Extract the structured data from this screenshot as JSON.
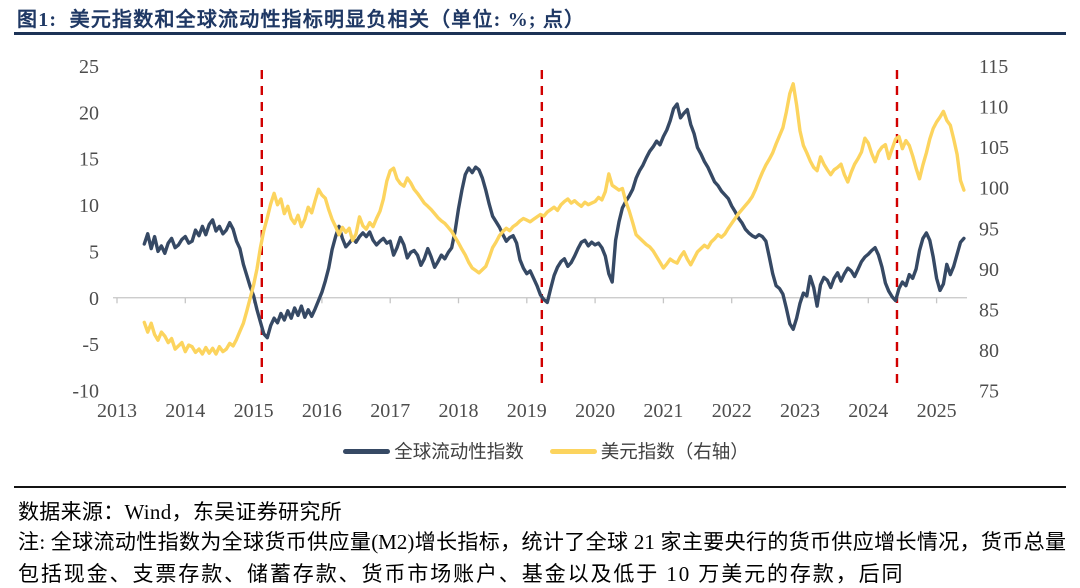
{
  "title": "图1:  美元指数和全球流动性指标明显负相关（单位: %; 点）",
  "chart_data": {
    "type": "line",
    "title": "美元指数和全球流动性指标明显负相关",
    "unit": "%; 点",
    "x_axis": {
      "labels": [
        "2013",
        "2014",
        "2015",
        "2016",
        "2017",
        "2018",
        "2019",
        "2020",
        "2021",
        "2022",
        "2023",
        "2024",
        "2025"
      ],
      "start": 2013,
      "end": 2025
    },
    "left_axis": {
      "min": -10,
      "max": 25,
      "step": 5,
      "ticks": [
        25,
        20,
        15,
        10,
        5,
        0,
        -5,
        -10
      ]
    },
    "right_axis": {
      "min": 75,
      "max": 115,
      "step": 5,
      "ticks": [
        115,
        110,
        105,
        100,
        95,
        90,
        85,
        80,
        75
      ]
    },
    "event_lines": {
      "color": "#d10000",
      "x": [
        2015.12,
        2019.22,
        2024.42
      ]
    },
    "series": [
      {
        "name": "全球流动性指数",
        "axis": "left",
        "color": "#364964",
        "points": [
          2013.4,
          5.8,
          2013.45,
          6.9,
          2013.5,
          5.3,
          2013.55,
          6.6,
          2013.6,
          5.0,
          2013.65,
          5.6,
          2013.7,
          4.8,
          2013.75,
          5.9,
          2013.8,
          6.4,
          2013.85,
          5.4,
          2013.9,
          5.7,
          2013.95,
          6.3,
          2014.0,
          6.6,
          2014.05,
          5.9,
          2014.1,
          6.1,
          2014.15,
          7.3,
          2014.2,
          6.7,
          2014.25,
          7.7,
          2014.3,
          6.8,
          2014.35,
          7.9,
          2014.4,
          8.4,
          2014.45,
          7.2,
          2014.5,
          7.7,
          2014.55,
          6.9,
          2014.6,
          7.3,
          2014.65,
          8.1,
          2014.7,
          7.4,
          2014.75,
          6.1,
          2014.8,
          5.3,
          2014.85,
          3.6,
          2014.9,
          2.4,
          2014.95,
          1.2,
          2015.0,
          0.2,
          2015.05,
          -1.3,
          2015.1,
          -2.6,
          2015.15,
          -3.9,
          2015.2,
          -4.3,
          2015.25,
          -3.0,
          2015.3,
          -2.2,
          2015.35,
          -2.7,
          2015.4,
          -1.7,
          2015.45,
          -2.4,
          2015.5,
          -1.4,
          2015.55,
          -2.2,
          2015.6,
          -1.1,
          2015.65,
          -1.9,
          2015.7,
          -0.9,
          2015.75,
          -2.1,
          2015.8,
          -1.3,
          2015.85,
          -2.0,
          2015.9,
          -1.2,
          2015.95,
          -0.3,
          2016.0,
          0.6,
          2016.05,
          1.8,
          2016.1,
          3.2,
          2016.15,
          5.2,
          2016.2,
          6.6,
          2016.25,
          7.7,
          2016.3,
          6.4,
          2016.35,
          5.5,
          2016.4,
          5.9,
          2016.45,
          6.4,
          2016.5,
          6.0,
          2016.55,
          6.6,
          2016.6,
          7.0,
          2016.65,
          6.6,
          2016.7,
          7.1,
          2016.75,
          6.2,
          2016.8,
          5.7,
          2016.85,
          6.1,
          2016.9,
          6.4,
          2016.95,
          5.9,
          2017.0,
          6.1,
          2017.05,
          4.6,
          2017.1,
          5.4,
          2017.15,
          6.5,
          2017.2,
          5.7,
          2017.25,
          4.3,
          2017.3,
          4.9,
          2017.35,
          5.1,
          2017.4,
          4.6,
          2017.45,
          3.5,
          2017.5,
          4.2,
          2017.55,
          5.3,
          2017.6,
          4.4,
          2017.65,
          3.3,
          2017.7,
          3.9,
          2017.75,
          4.6,
          2017.8,
          4.2,
          2017.85,
          4.9,
          2017.9,
          5.4,
          2017.95,
          7.2,
          2018.0,
          9.6,
          2018.05,
          11.6,
          2018.1,
          13.3,
          2018.15,
          14.0,
          2018.2,
          13.5,
          2018.25,
          14.1,
          2018.3,
          13.8,
          2018.35,
          12.9,
          2018.4,
          11.6,
          2018.45,
          10.1,
          2018.5,
          8.8,
          2018.55,
          8.2,
          2018.6,
          7.6,
          2018.65,
          6.8,
          2018.7,
          6.1,
          2018.75,
          6.5,
          2018.8,
          6.7,
          2018.85,
          5.9,
          2018.9,
          4.1,
          2018.95,
          3.2,
          2019.0,
          2.6,
          2019.05,
          2.9,
          2019.1,
          2.1,
          2019.15,
          1.3,
          2019.2,
          0.3,
          2019.25,
          -0.2,
          2019.3,
          -0.5,
          2019.35,
          1.0,
          2019.4,
          2.4,
          2019.45,
          3.3,
          2019.5,
          3.9,
          2019.55,
          4.2,
          2019.6,
          3.4,
          2019.65,
          3.8,
          2019.7,
          4.5,
          2019.75,
          5.3,
          2019.8,
          6.0,
          2019.85,
          6.2,
          2019.9,
          5.6,
          2019.95,
          6.0,
          2020.0,
          5.7,
          2020.05,
          5.9,
          2020.1,
          5.4,
          2020.15,
          4.5,
          2020.2,
          2.6,
          2020.25,
          1.7,
          2020.3,
          6.2,
          2020.35,
          8.2,
          2020.4,
          9.7,
          2020.45,
          10.4,
          2020.5,
          11.0,
          2020.55,
          11.7,
          2020.6,
          12.9,
          2020.65,
          13.7,
          2020.7,
          14.3,
          2020.75,
          15.1,
          2020.8,
          15.8,
          2020.85,
          16.3,
          2020.9,
          16.9,
          2020.95,
          16.5,
          2021.0,
          17.4,
          2021.05,
          18.1,
          2021.1,
          19.1,
          2021.15,
          20.4,
          2021.2,
          20.9,
          2021.25,
          19.4,
          2021.3,
          19.9,
          2021.35,
          20.3,
          2021.4,
          18.7,
          2021.45,
          17.7,
          2021.5,
          16.2,
          2021.55,
          15.5,
          2021.6,
          14.7,
          2021.65,
          14.1,
          2021.7,
          13.3,
          2021.75,
          12.5,
          2021.8,
          12.1,
          2021.85,
          11.5,
          2021.9,
          11.1,
          2021.95,
          10.7,
          2022.0,
          9.9,
          2022.05,
          9.3,
          2022.1,
          8.6,
          2022.15,
          8.1,
          2022.2,
          7.4,
          2022.25,
          7.0,
          2022.3,
          6.7,
          2022.35,
          6.5,
          2022.4,
          6.8,
          2022.45,
          6.6,
          2022.5,
          6.1,
          2022.55,
          4.4,
          2022.6,
          2.6,
          2022.65,
          1.3,
          2022.7,
          1.0,
          2022.75,
          0.4,
          2022.8,
          -1.1,
          2022.85,
          -2.8,
          2022.9,
          -3.4,
          2022.95,
          -2.2,
          2023.0,
          -0.6,
          2023.05,
          0.5,
          2023.1,
          0.2,
          2023.15,
          2.3,
          2023.2,
          1.1,
          2023.25,
          -0.9,
          2023.3,
          1.4,
          2023.35,
          2.2,
          2023.4,
          1.9,
          2023.45,
          1.1,
          2023.5,
          2.1,
          2023.55,
          2.7,
          2023.6,
          1.8,
          2023.65,
          2.6,
          2023.7,
          3.2,
          2023.75,
          2.9,
          2023.8,
          2.3,
          2023.85,
          3.1,
          2023.9,
          3.9,
          2023.95,
          4.4,
          2024.0,
          4.7,
          2024.05,
          5.1,
          2024.1,
          5.4,
          2024.15,
          4.6,
          2024.2,
          3.3,
          2024.25,
          1.6,
          2024.3,
          0.7,
          2024.35,
          0.1,
          2024.4,
          -0.3,
          2024.45,
          1.0,
          2024.5,
          1.7,
          2024.55,
          1.3,
          2024.6,
          2.5,
          2024.65,
          2.1,
          2024.7,
          3.1,
          2024.75,
          5.1,
          2024.8,
          6.4,
          2024.85,
          7.0,
          2024.9,
          6.2,
          2024.95,
          4.4,
          2025.0,
          2.1,
          2025.05,
          0.8,
          2025.1,
          1.5,
          2025.15,
          3.6,
          2025.2,
          2.5,
          2025.25,
          3.4,
          2025.3,
          4.7,
          2025.35,
          6.0,
          2025.4,
          6.4
        ]
      },
      {
        "name": "美元指数（右轴）",
        "axis": "right",
        "color": "#fcd45e",
        "points": [
          2013.4,
          83.4,
          2013.45,
          82.2,
          2013.5,
          83.3,
          2013.55,
          81.9,
          2013.6,
          81.2,
          2013.65,
          82.2,
          2013.7,
          81.7,
          2013.75,
          80.9,
          2013.8,
          81.4,
          2013.85,
          80.1,
          2013.9,
          80.5,
          2013.95,
          80.9,
          2014.0,
          79.8,
          2014.05,
          80.6,
          2014.1,
          80.4,
          2014.15,
          79.7,
          2014.2,
          80.1,
          2014.25,
          79.5,
          2014.3,
          80.3,
          2014.35,
          79.6,
          2014.4,
          80.2,
          2014.45,
          79.5,
          2014.5,
          80.4,
          2014.55,
          79.8,
          2014.6,
          80.1,
          2014.65,
          80.8,
          2014.7,
          80.5,
          2014.75,
          81.3,
          2014.8,
          82.3,
          2014.85,
          83.3,
          2014.9,
          84.8,
          2014.95,
          86.4,
          2015.0,
          88.0,
          2015.05,
          90.0,
          2015.1,
          92.6,
          2015.15,
          94.7,
          2015.2,
          96.3,
          2015.25,
          98.0,
          2015.3,
          99.3,
          2015.35,
          97.9,
          2015.4,
          98.6,
          2015.45,
          96.8,
          2015.5,
          97.7,
          2015.55,
          96.2,
          2015.6,
          95.6,
          2015.65,
          96.6,
          2015.7,
          95.2,
          2015.75,
          96.1,
          2015.8,
          97.6,
          2015.85,
          96.9,
          2015.9,
          98.4,
          2015.95,
          99.8,
          2016.0,
          99.1,
          2016.05,
          98.7,
          2016.1,
          97.3,
          2016.15,
          96.1,
          2016.2,
          95.2,
          2016.25,
          94.2,
          2016.3,
          95.1,
          2016.35,
          94.5,
          2016.4,
          95.0,
          2016.45,
          93.5,
          2016.5,
          94.3,
          2016.55,
          96.4,
          2016.6,
          95.3,
          2016.65,
          94.9,
          2016.7,
          95.7,
          2016.75,
          95.2,
          2016.8,
          96.2,
          2016.85,
          97.1,
          2016.9,
          98.6,
          2016.95,
          100.8,
          2017.0,
          102.1,
          2017.05,
          102.4,
          2017.1,
          101.1,
          2017.15,
          100.5,
          2017.2,
          100.2,
          2017.25,
          101.2,
          2017.3,
          100.6,
          2017.35,
          99.8,
          2017.4,
          99.3,
          2017.45,
          98.7,
          2017.5,
          98.1,
          2017.55,
          97.7,
          2017.6,
          97.3,
          2017.65,
          96.8,
          2017.7,
          96.3,
          2017.75,
          95.9,
          2017.8,
          95.6,
          2017.85,
          95.1,
          2017.9,
          94.6,
          2017.95,
          93.9,
          2018.0,
          93.2,
          2018.05,
          92.4,
          2018.1,
          91.7,
          2018.15,
          90.8,
          2018.2,
          90.1,
          2018.25,
          89.8,
          2018.3,
          89.5,
          2018.35,
          89.9,
          2018.4,
          90.3,
          2018.45,
          91.4,
          2018.5,
          92.6,
          2018.55,
          93.3,
          2018.6,
          94.1,
          2018.65,
          94.6,
          2018.7,
          95.0,
          2018.75,
          94.7,
          2018.8,
          95.2,
          2018.85,
          95.5,
          2018.9,
          95.9,
          2018.95,
          96.2,
          2019.0,
          96.0,
          2019.05,
          95.8,
          2019.1,
          96.1,
          2019.15,
          96.4,
          2019.2,
          96.7,
          2019.25,
          96.5,
          2019.3,
          97.0,
          2019.35,
          97.3,
          2019.4,
          97.6,
          2019.45,
          97.2,
          2019.5,
          97.9,
          2019.55,
          98.3,
          2019.6,
          98.6,
          2019.65,
          98.1,
          2019.7,
          98.4,
          2019.75,
          98.0,
          2019.8,
          97.7,
          2019.85,
          98.2,
          2019.9,
          97.9,
          2019.95,
          98.1,
          2020.0,
          98.3,
          2020.05,
          98.8,
          2020.1,
          98.5,
          2020.15,
          99.5,
          2020.2,
          101.7,
          2020.25,
          100.3,
          2020.3,
          100.0,
          2020.35,
          99.7,
          2020.4,
          99.9,
          2020.45,
          98.3,
          2020.5,
          97.1,
          2020.55,
          95.7,
          2020.6,
          94.2,
          2020.65,
          93.8,
          2020.7,
          93.4,
          2020.75,
          93.0,
          2020.8,
          92.7,
          2020.85,
          92.2,
          2020.9,
          91.5,
          2020.95,
          90.8,
          2021.0,
          90.1,
          2021.05,
          90.6,
          2021.1,
          91.2,
          2021.15,
          90.9,
          2021.2,
          90.7,
          2021.25,
          91.5,
          2021.3,
          92.1,
          2021.35,
          91.2,
          2021.4,
          90.5,
          2021.45,
          91.3,
          2021.5,
          92.1,
          2021.55,
          92.5,
          2021.6,
          92.9,
          2021.65,
          92.6,
          2021.7,
          93.3,
          2021.75,
          93.7,
          2021.8,
          94.2,
          2021.85,
          93.9,
          2021.9,
          94.3,
          2021.95,
          95.0,
          2022.0,
          95.6,
          2022.05,
          96.2,
          2022.1,
          96.8,
          2022.15,
          97.3,
          2022.2,
          97.8,
          2022.25,
          98.3,
          2022.3,
          98.9,
          2022.35,
          99.8,
          2022.4,
          100.9,
          2022.45,
          101.9,
          2022.5,
          102.8,
          2022.55,
          103.5,
          2022.6,
          104.3,
          2022.65,
          105.4,
          2022.7,
          106.4,
          2022.75,
          107.4,
          2022.8,
          109.3,
          2022.85,
          111.6,
          2022.9,
          112.8,
          2022.95,
          110.2,
          2023.0,
          107.0,
          2023.05,
          105.2,
          2023.1,
          104.3,
          2023.15,
          103.3,
          2023.2,
          102.5,
          2023.25,
          102.1,
          2023.3,
          103.8,
          2023.35,
          102.9,
          2023.4,
          102.2,
          2023.45,
          101.6,
          2023.5,
          102.2,
          2023.55,
          102.5,
          2023.6,
          102.9,
          2023.65,
          101.6,
          2023.7,
          100.7,
          2023.75,
          101.9,
          2023.8,
          102.9,
          2023.85,
          103.6,
          2023.9,
          104.4,
          2023.95,
          106.1,
          2024.0,
          105.5,
          2024.05,
          104.2,
          2024.1,
          103.2,
          2024.15,
          104.4,
          2024.2,
          105.0,
          2024.25,
          105.3,
          2024.3,
          103.6,
          2024.35,
          104.8,
          2024.4,
          106.0,
          2024.45,
          106.3,
          2024.5,
          104.8,
          2024.55,
          105.8,
          2024.6,
          105.2,
          2024.65,
          103.9,
          2024.7,
          102.4,
          2024.75,
          101.1,
          2024.8,
          102.8,
          2024.85,
          104.3,
          2024.9,
          106.0,
          2024.95,
          107.3,
          2025.0,
          108.1,
          2025.05,
          108.7,
          2025.1,
          109.4,
          2025.15,
          108.3,
          2025.2,
          107.7,
          2025.25,
          106.0,
          2025.3,
          104.1,
          2025.35,
          100.9,
          2025.4,
          99.7
        ]
      }
    ],
    "legend": [
      "全球流动性指数",
      "美元指数（右轴）"
    ]
  },
  "footer": {
    "source": "数据来源：Wind，东吴证券研究所",
    "note_line1": "注: 全球流动性指数为全球货币供应量(M2)增长指标，统计了全球 21 家主要央行的货币供应增长情况，货币总量",
    "note_line2": "包括现金、支票存款、储蓄存款、货币市场账户、基金以及低于 10 万美元的存款，后同"
  }
}
